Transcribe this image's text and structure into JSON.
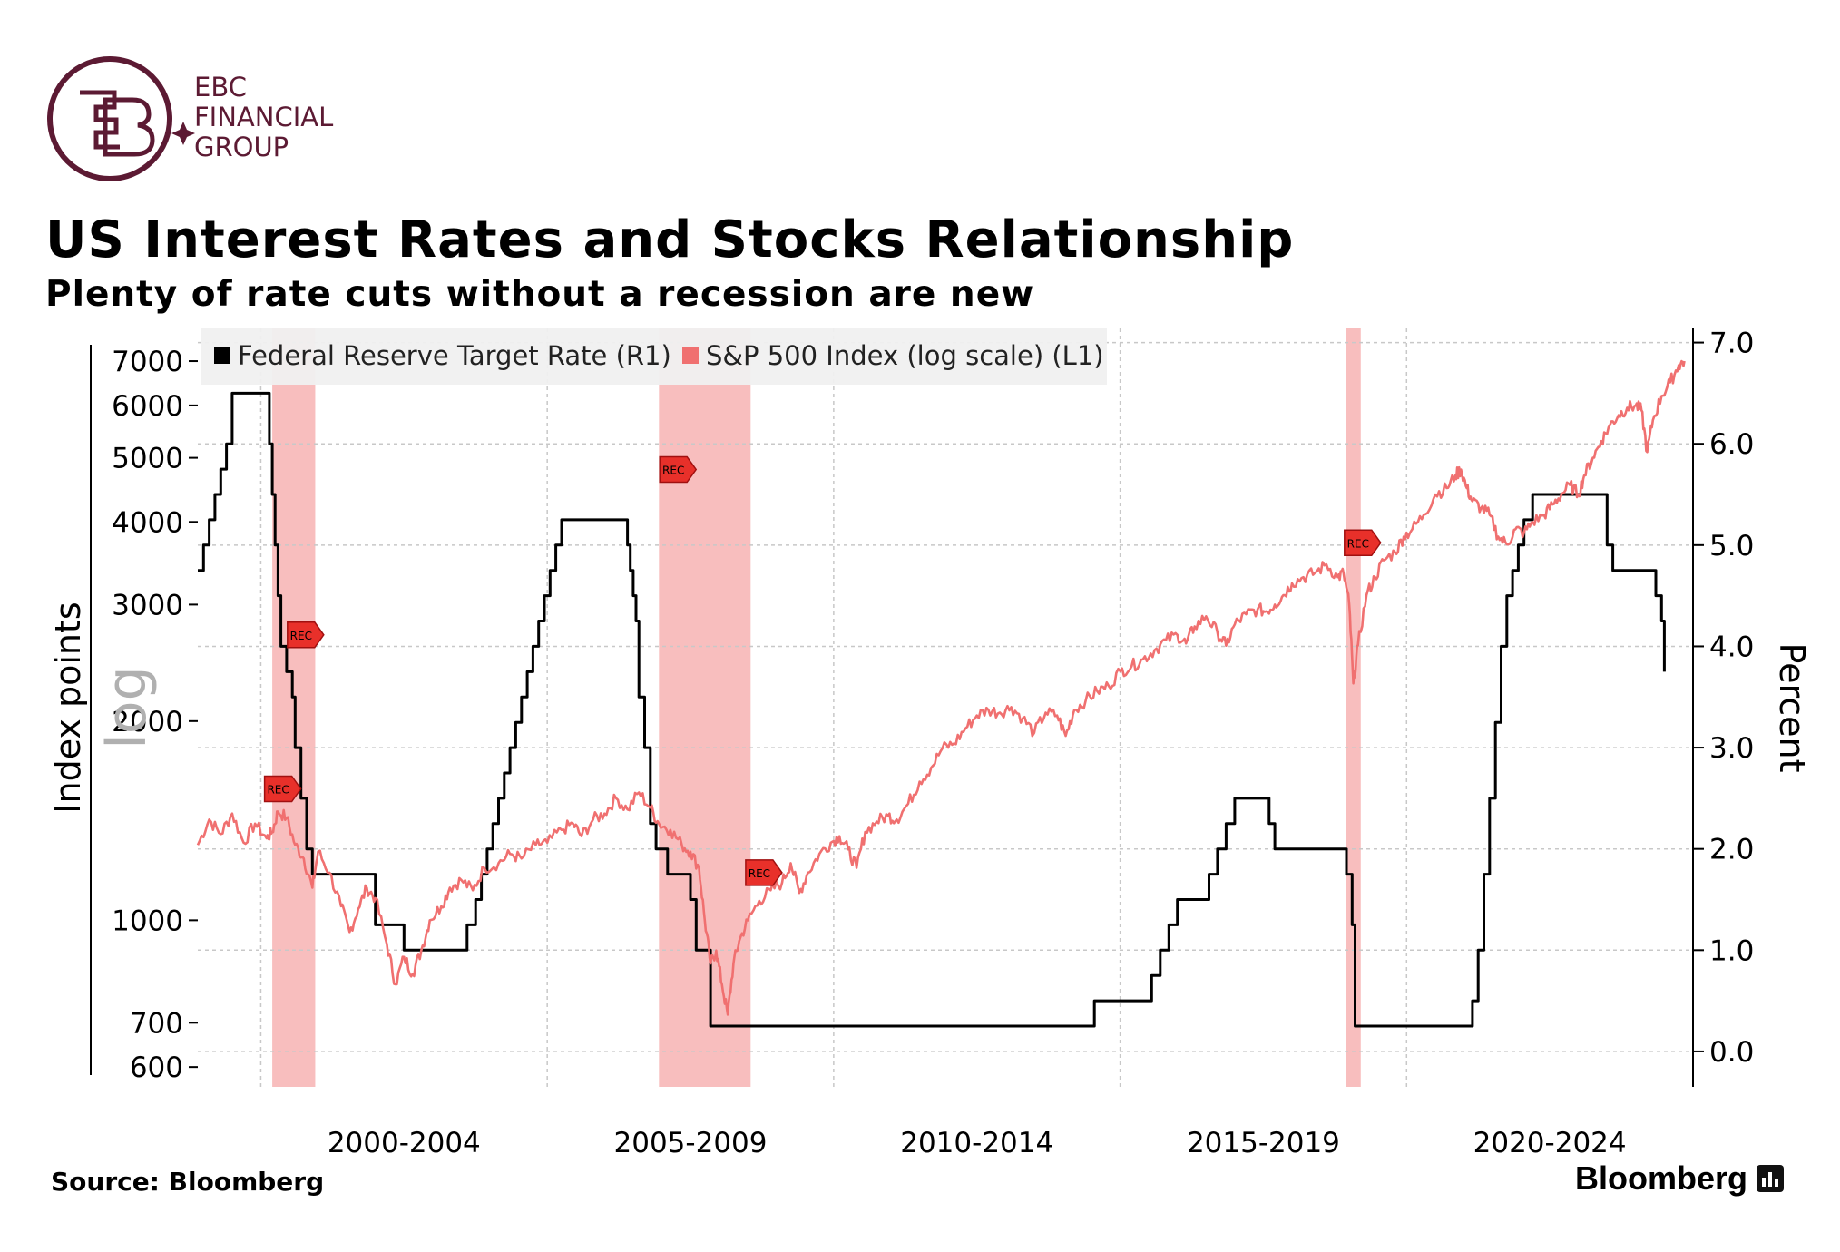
{
  "logo": {
    "line1": "EBC",
    "line2": "FINANCIAL",
    "line3": "GROUP",
    "color": "#5c1a33"
  },
  "header": {
    "title": "US Interest Rates and Stocks Relationship",
    "subtitle": "Plenty of rate cuts without a recession are new"
  },
  "footer": {
    "source": "Source: Bloomberg",
    "brand": "Bloomberg"
  },
  "chart_data": {
    "type": "line",
    "title": "US Interest Rates and Stocks Relationship",
    "subtitle": "Plenty of rate cuts without a recession are new",
    "legend_position": "top-left",
    "grid": true,
    "x_range": [
      1998.9,
      2025.0
    ],
    "x_tick_labels": [
      "2000-2004",
      "2005-2009",
      "2010-2014",
      "2015-2019",
      "2020-2024"
    ],
    "y_left": {
      "label": "Index points",
      "scale_label": "log",
      "scale": "log",
      "range": [
        560,
        7600
      ],
      "ticks": [
        600,
        700,
        1000,
        2000,
        3000,
        4000,
        5000,
        6000,
        7000
      ]
    },
    "y_right": {
      "label": "Percent",
      "range": [
        -0.35,
        7.05
      ],
      "ticks": [
        "0.0",
        "1.0",
        "2.0",
        "3.0",
        "4.0",
        "5.0",
        "6.0",
        "7.0"
      ]
    },
    "recessions": [
      [
        2000.2,
        2000.95
      ],
      [
        2006.95,
        2008.55
      ],
      [
        2018.95,
        2019.2
      ]
    ],
    "rec_marker_label": "REC",
    "rec_markers": [
      {
        "x": 2000.75,
        "y": 2700
      },
      {
        "x": 2000.35,
        "y": 1580
      },
      {
        "x": 2007.25,
        "y": 4800
      },
      {
        "x": 2008.75,
        "y": 1180
      },
      {
        "x": 2019.2,
        "y": 3720
      }
    ],
    "series": [
      {
        "name": "Federal Reserve Target Rate (R1)",
        "axis": "right",
        "color": "#000000",
        "step": true,
        "points": [
          [
            1998.9,
            4.75
          ],
          [
            1999.0,
            5.0
          ],
          [
            1999.1,
            5.25
          ],
          [
            1999.2,
            5.5
          ],
          [
            1999.3,
            5.75
          ],
          [
            1999.4,
            6.0
          ],
          [
            1999.5,
            6.5
          ],
          [
            2000.1,
            6.5
          ],
          [
            2000.15,
            6.0
          ],
          [
            2000.2,
            5.5
          ],
          [
            2000.25,
            5.0
          ],
          [
            2000.3,
            4.5
          ],
          [
            2000.35,
            4.0
          ],
          [
            2000.45,
            3.75
          ],
          [
            2000.55,
            3.5
          ],
          [
            2000.6,
            3.0
          ],
          [
            2000.7,
            2.5
          ],
          [
            2000.8,
            2.0
          ],
          [
            2000.9,
            1.75
          ],
          [
            2001.0,
            1.75
          ],
          [
            2002.0,
            1.25
          ],
          [
            2002.5,
            1.0
          ],
          [
            2003.5,
            1.0
          ],
          [
            2003.6,
            1.25
          ],
          [
            2003.75,
            1.5
          ],
          [
            2003.85,
            1.75
          ],
          [
            2003.95,
            2.0
          ],
          [
            2004.05,
            2.25
          ],
          [
            2004.15,
            2.5
          ],
          [
            2004.25,
            2.75
          ],
          [
            2004.35,
            3.0
          ],
          [
            2004.45,
            3.25
          ],
          [
            2004.55,
            3.5
          ],
          [
            2004.65,
            3.75
          ],
          [
            2004.75,
            4.0
          ],
          [
            2004.85,
            4.25
          ],
          [
            2004.95,
            4.5
          ],
          [
            2005.05,
            4.75
          ],
          [
            2005.15,
            5.0
          ],
          [
            2005.25,
            5.25
          ],
          [
            2006.2,
            5.25
          ],
          [
            2006.4,
            5.0
          ],
          [
            2006.45,
            4.75
          ],
          [
            2006.5,
            4.5
          ],
          [
            2006.55,
            4.25
          ],
          [
            2006.6,
            3.5
          ],
          [
            2006.7,
            3.0
          ],
          [
            2006.8,
            2.25
          ],
          [
            2006.9,
            2.0
          ],
          [
            2007.0,
            2.0
          ],
          [
            2007.1,
            1.75
          ],
          [
            2007.5,
            1.5
          ],
          [
            2007.6,
            1.0
          ],
          [
            2007.85,
            0.25
          ],
          [
            2014.5,
            0.25
          ],
          [
            2014.55,
            0.5
          ],
          [
            2015.5,
            0.5
          ],
          [
            2015.55,
            0.75
          ],
          [
            2015.7,
            1.0
          ],
          [
            2015.85,
            1.25
          ],
          [
            2016.0,
            1.5
          ],
          [
            2016.5,
            1.5
          ],
          [
            2016.55,
            1.75
          ],
          [
            2016.7,
            2.0
          ],
          [
            2016.85,
            2.25
          ],
          [
            2017.0,
            2.5
          ],
          [
            2017.5,
            2.5
          ],
          [
            2017.6,
            2.25
          ],
          [
            2017.7,
            2.0
          ],
          [
            2018.8,
            2.0
          ],
          [
            2018.95,
            1.75
          ],
          [
            2019.05,
            1.25
          ],
          [
            2019.1,
            0.25
          ],
          [
            2021.1,
            0.25
          ],
          [
            2021.15,
            0.5
          ],
          [
            2021.25,
            1.0
          ],
          [
            2021.35,
            1.75
          ],
          [
            2021.45,
            2.5
          ],
          [
            2021.55,
            3.25
          ],
          [
            2021.65,
            4.0
          ],
          [
            2021.75,
            4.5
          ],
          [
            2021.85,
            4.75
          ],
          [
            2021.95,
            5.0
          ],
          [
            2022.05,
            5.25
          ],
          [
            2022.2,
            5.5
          ],
          [
            2023.4,
            5.5
          ],
          [
            2023.5,
            5.0
          ],
          [
            2023.6,
            4.75
          ],
          [
            2024.2,
            4.75
          ],
          [
            2024.35,
            4.5
          ],
          [
            2024.45,
            4.25
          ],
          [
            2024.5,
            3.75
          ]
        ]
      },
      {
        "name": "S&P 500 Index (log scale) (L1)",
        "axis": "left",
        "color": "#f07070",
        "points": [
          [
            1998.9,
            1300
          ],
          [
            1999.1,
            1420
          ],
          [
            1999.3,
            1350
          ],
          [
            1999.5,
            1450
          ],
          [
            1999.7,
            1310
          ],
          [
            1999.9,
            1400
          ],
          [
            2000.1,
            1330
          ],
          [
            2000.2,
            1360
          ],
          [
            2000.3,
            1460
          ],
          [
            2000.45,
            1430
          ],
          [
            2000.6,
            1300
          ],
          [
            2000.75,
            1240
          ],
          [
            2000.9,
            1120
          ],
          [
            2001.0,
            1270
          ],
          [
            2001.2,
            1180
          ],
          [
            2001.4,
            1050
          ],
          [
            2001.55,
            960
          ],
          [
            2001.7,
            1040
          ],
          [
            2001.85,
            1120
          ],
          [
            2002.0,
            1080
          ],
          [
            2002.2,
            920
          ],
          [
            2002.35,
            800
          ],
          [
            2002.5,
            880
          ],
          [
            2002.65,
            830
          ],
          [
            2002.8,
            900
          ],
          [
            2002.95,
            1000
          ],
          [
            2003.15,
            1050
          ],
          [
            2003.3,
            1120
          ],
          [
            2003.5,
            1150
          ],
          [
            2003.7,
            1110
          ],
          [
            2003.9,
            1200
          ],
          [
            2004.15,
            1220
          ],
          [
            2004.35,
            1260
          ],
          [
            2004.55,
            1240
          ],
          [
            2004.8,
            1300
          ],
          [
            2005.0,
            1310
          ],
          [
            2005.25,
            1370
          ],
          [
            2005.45,
            1400
          ],
          [
            2005.6,
            1340
          ],
          [
            2005.8,
            1420
          ],
          [
            2006.0,
            1450
          ],
          [
            2006.2,
            1530
          ],
          [
            2006.4,
            1470
          ],
          [
            2006.6,
            1560
          ],
          [
            2006.8,
            1480
          ],
          [
            2006.95,
            1400
          ],
          [
            2007.15,
            1370
          ],
          [
            2007.35,
            1300
          ],
          [
            2007.5,
            1270
          ],
          [
            2007.65,
            1200
          ],
          [
            2007.75,
            1000
          ],
          [
            2007.85,
            860
          ],
          [
            2007.95,
            900
          ],
          [
            2008.05,
            800
          ],
          [
            2008.15,
            720
          ],
          [
            2008.25,
            860
          ],
          [
            2008.35,
            930
          ],
          [
            2008.5,
            1000
          ],
          [
            2008.7,
            1070
          ],
          [
            2008.9,
            1110
          ],
          [
            2009.1,
            1140
          ],
          [
            2009.25,
            1220
          ],
          [
            2009.4,
            1100
          ],
          [
            2009.55,
            1180
          ],
          [
            2009.75,
            1260
          ],
          [
            2009.95,
            1310
          ],
          [
            2010.1,
            1340
          ],
          [
            2010.25,
            1280
          ],
          [
            2010.4,
            1200
          ],
          [
            2010.55,
            1360
          ],
          [
            2010.75,
            1410
          ],
          [
            2010.95,
            1440
          ],
          [
            2011.1,
            1420
          ],
          [
            2011.3,
            1500
          ],
          [
            2011.5,
            1620
          ],
          [
            2011.7,
            1700
          ],
          [
            2011.9,
            1820
          ],
          [
            2012.1,
            1850
          ],
          [
            2012.3,
            1950
          ],
          [
            2012.5,
            2040
          ],
          [
            2012.7,
            2080
          ],
          [
            2012.9,
            2060
          ],
          [
            2013.1,
            2100
          ],
          [
            2013.3,
            2020
          ],
          [
            2013.5,
            1920
          ],
          [
            2013.7,
            2060
          ],
          [
            2013.9,
            2040
          ],
          [
            2014.05,
            1900
          ],
          [
            2014.2,
            2080
          ],
          [
            2014.4,
            2150
          ],
          [
            2014.6,
            2220
          ],
          [
            2014.8,
            2260
          ],
          [
            2015.0,
            2380
          ],
          [
            2015.2,
            2420
          ],
          [
            2015.4,
            2480
          ],
          [
            2015.6,
            2560
          ],
          [
            2015.8,
            2650
          ],
          [
            2016.0,
            2700
          ],
          [
            2016.15,
            2620
          ],
          [
            2016.3,
            2780
          ],
          [
            2016.5,
            2880
          ],
          [
            2016.7,
            2720
          ],
          [
            2016.85,
            2600
          ],
          [
            2017.0,
            2800
          ],
          [
            2017.2,
            2900
          ],
          [
            2017.4,
            2950
          ],
          [
            2017.55,
            2930
          ],
          [
            2017.7,
            3000
          ],
          [
            2017.85,
            3100
          ],
          [
            2018.0,
            3230
          ],
          [
            2018.2,
            3300
          ],
          [
            2018.4,
            3350
          ],
          [
            2018.6,
            3450
          ],
          [
            2018.8,
            3300
          ],
          [
            2018.9,
            3350
          ],
          [
            2019.0,
            3000
          ],
          [
            2019.07,
            2280
          ],
          [
            2019.15,
            2600
          ],
          [
            2019.3,
            3100
          ],
          [
            2019.45,
            3300
          ],
          [
            2019.6,
            3500
          ],
          [
            2019.8,
            3600
          ],
          [
            2019.95,
            3800
          ],
          [
            2020.1,
            3900
          ],
          [
            2020.3,
            4100
          ],
          [
            2020.5,
            4400
          ],
          [
            2020.7,
            4500
          ],
          [
            2020.85,
            4700
          ],
          [
            2020.95,
            4800
          ],
          [
            2021.05,
            4500
          ],
          [
            2021.15,
            4300
          ],
          [
            2021.3,
            4200
          ],
          [
            2021.45,
            4100
          ],
          [
            2021.6,
            3800
          ],
          [
            2021.75,
            3700
          ],
          [
            2021.9,
            3900
          ],
          [
            2022.05,
            3850
          ],
          [
            2022.2,
            4000
          ],
          [
            2022.4,
            4100
          ],
          [
            2022.55,
            4250
          ],
          [
            2022.7,
            4400
          ],
          [
            2022.85,
            4550
          ],
          [
            2023.0,
            4400
          ],
          [
            2023.1,
            4700
          ],
          [
            2023.25,
            5000
          ],
          [
            2023.4,
            5300
          ],
          [
            2023.55,
            5600
          ],
          [
            2023.7,
            5800
          ],
          [
            2023.85,
            5950
          ],
          [
            2024.0,
            6000
          ],
          [
            2024.1,
            5900
          ],
          [
            2024.2,
            5100
          ],
          [
            2024.3,
            5700
          ],
          [
            2024.45,
            6200
          ],
          [
            2024.6,
            6500
          ],
          [
            2024.75,
            6900
          ],
          [
            2024.85,
            7000
          ]
        ]
      }
    ]
  }
}
